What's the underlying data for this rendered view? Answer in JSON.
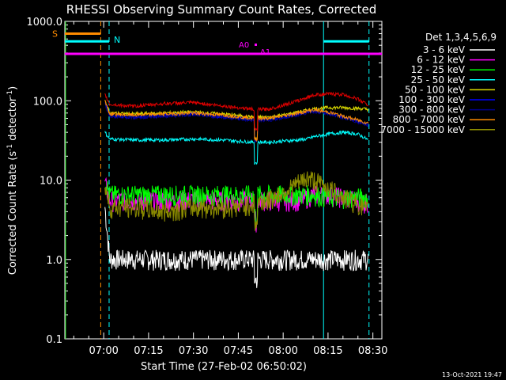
{
  "chart_data": {
    "type": "line",
    "title": "RHESSI Observing Summary Count Rates, Corrected",
    "xlabel": "Start Time (27-Feb-02 06:50:02)",
    "ylabel_main": "Corrected Count Rate (s",
    "ylabel_sup1": "-1",
    "ylabel_mid": " detector",
    "ylabel_sup2": "-1",
    "ylabel_end": ")",
    "yscale": "log",
    "ylim": [
      0.1,
      1000
    ],
    "xlim": [
      -3,
      103
    ],
    "x_ticks": [
      {
        "m": 10,
        "label": "07:00"
      },
      {
        "m": 25,
        "label": "07:15"
      },
      {
        "m": 40,
        "label": "07:30"
      },
      {
        "m": 55,
        "label": "07:45"
      },
      {
        "m": 70,
        "label": "08:00"
      },
      {
        "m": 85,
        "label": "08:15"
      },
      {
        "m": 100,
        "label": "08:30"
      }
    ],
    "y_ticks": [
      {
        "v": 0.1,
        "label": "0.1"
      },
      {
        "v": 1,
        "label": "1.0"
      },
      {
        "v": 10,
        "label": "10.0"
      },
      {
        "v": 100,
        "label": "100.0"
      },
      {
        "v": 1000,
        "label": "1000.0"
      }
    ],
    "legend_title": "Det 1,3,4,5,6,9",
    "legend_position": "right",
    "series": [
      {
        "name": "3 - 6 keV",
        "color": "#ffffff",
        "x": [
          10.4,
          12,
          20,
          30,
          40,
          50,
          55,
          60,
          65,
          70,
          75,
          78,
          80,
          85,
          90,
          95,
          98.5
        ],
        "y": [
          4.5,
          1.0,
          1.0,
          1.0,
          1.0,
          1.0,
          1.0,
          1.0,
          1.0,
          1.0,
          1.0,
          1.0,
          1.0,
          1.0,
          1.0,
          1.0,
          1.0
        ]
      },
      {
        "name": "6 - 12 keV",
        "color": "#ff00ff",
        "x": [
          10.4,
          12,
          20,
          30,
          40,
          50,
          55,
          60,
          65,
          70,
          75,
          78,
          80,
          85,
          90,
          95,
          98.5
        ],
        "y": [
          9,
          5.5,
          5.5,
          5.5,
          5.5,
          5.5,
          5.5,
          5.5,
          5.5,
          5.5,
          5.5,
          6,
          6.5,
          6.5,
          6,
          5.5,
          5
        ]
      },
      {
        "name": "12 - 25 keV",
        "color": "#00ff00",
        "x": [
          10.4,
          12,
          20,
          30,
          40,
          50,
          55,
          60,
          65,
          70,
          75,
          78,
          80,
          85,
          90,
          95,
          98.5
        ],
        "y": [
          10,
          6.5,
          6.5,
          6.5,
          6.5,
          6.5,
          6.5,
          6.5,
          6.5,
          6.5,
          6.5,
          6.5,
          6.5,
          6.0,
          6.0,
          6.0,
          6.0
        ]
      },
      {
        "name": "25 - 50 keV",
        "color": "#00ffff",
        "x": [
          10.4,
          12,
          20,
          30,
          40,
          50,
          55,
          60,
          65,
          70,
          75,
          78,
          80,
          85,
          90,
          95,
          98.5
        ],
        "y": [
          40,
          33,
          32,
          32,
          33,
          32,
          31,
          30,
          30,
          31,
          32,
          33,
          35,
          38,
          40,
          38,
          32
        ]
      },
      {
        "name": "50 - 100 keV",
        "color": "#dddd00",
        "x": [
          10.4,
          12,
          20,
          30,
          40,
          50,
          55,
          60,
          65,
          70,
          75,
          78,
          80,
          85,
          90,
          95,
          98.5
        ],
        "y": [
          100,
          70,
          68,
          70,
          72,
          68,
          65,
          62,
          62,
          66,
          72,
          76,
          79,
          82,
          82,
          80,
          78
        ]
      },
      {
        "name": "100 - 300 keV",
        "color": "#0000ff",
        "x": [
          10.4,
          12,
          20,
          30,
          40,
          50,
          55,
          60,
          65,
          70,
          75,
          78,
          80,
          85,
          90,
          95,
          98.5
        ],
        "y": [
          95,
          65,
          62,
          65,
          68,
          63,
          60,
          58,
          58,
          62,
          68,
          72,
          75,
          70,
          62,
          55,
          50
        ]
      },
      {
        "name": "300 - 800 keV",
        "color": "#00008b",
        "x": [
          10.4,
          12,
          20,
          30,
          40,
          50,
          55,
          60,
          65,
          70,
          75,
          78,
          80,
          85,
          90,
          95,
          98.5
        ],
        "y": [
          92,
          64,
          61,
          64,
          67,
          62,
          59,
          57,
          57,
          61,
          67,
          71,
          74,
          69,
          61,
          54,
          49
        ]
      },
      {
        "name": "800 - 7000 keV",
        "color": "#ff8c00",
        "x": [
          10.4,
          12,
          20,
          30,
          40,
          50,
          55,
          60,
          65,
          70,
          75,
          78,
          80,
          85,
          90,
          95,
          98.5
        ],
        "y": [
          100,
          68,
          66,
          68,
          70,
          66,
          63,
          60,
          60,
          64,
          70,
          74,
          77,
          72,
          64,
          57,
          52
        ]
      },
      {
        "name": "7000 - 15000 keV",
        "color": "#8b8b00",
        "x": [
          10.4,
          12,
          20,
          30,
          40,
          50,
          55,
          60,
          65,
          70,
          75,
          78,
          80,
          85,
          90,
          95,
          98.5
        ],
        "y": [
          9,
          4.5,
          4.5,
          4.0,
          4.5,
          4.5,
          4.5,
          5.0,
          5.5,
          7,
          9,
          10.5,
          10,
          8,
          6,
          5,
          4
        ]
      },
      {
        "name": "",
        "color": "#dd0000",
        "x": [
          10.4,
          12,
          20,
          30,
          40,
          50,
          55,
          60,
          65,
          70,
          75,
          78,
          80,
          85,
          90,
          95,
          98.5
        ],
        "y": [
          120,
          90,
          85,
          92,
          95,
          86,
          82,
          78,
          78,
          88,
          100,
          110,
          118,
          122,
          120,
          105,
          88
        ]
      }
    ],
    "annotations": {
      "s_label": "S",
      "n_label": "N",
      "a0_label": "A0",
      "a1_label": "A1",
      "saa_color": "#ff8c00",
      "night_color": "#00ffff",
      "atten_color": "#ff00ff",
      "saa_bar": {
        "x0": -3,
        "x1": 9,
        "y": 700
      },
      "night_bars": [
        {
          "x0": -3,
          "x1": 11.8,
          "y": 560
        },
        {
          "x0": 83.5,
          "x1": 98.7,
          "y": 560
        }
      ],
      "atten_bar": {
        "x0": -3,
        "x1": 103,
        "y": 390
      },
      "saa_lines": [
        9.0
      ],
      "night_lines": [
        11.8,
        83.5,
        98.7
      ],
      "green_line": -3
    },
    "footer_date": "13-Oct-2021 19:47"
  }
}
